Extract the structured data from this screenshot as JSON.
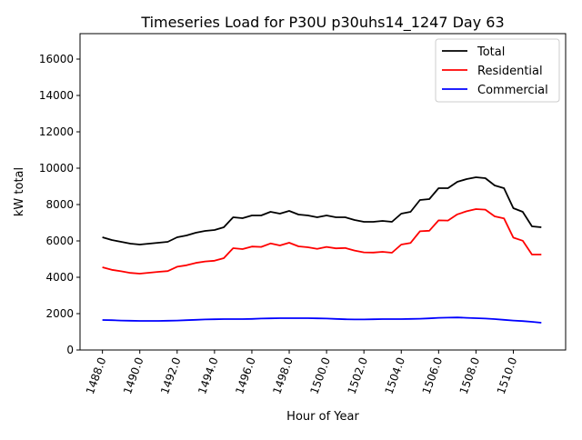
{
  "chart_data": {
    "type": "line",
    "title": "Timeseries Load for P30U p30uhs14_1247  Day 63",
    "xlabel": "Hour of Year",
    "ylabel": "kW total",
    "xlim": [
      1486.8,
      1512.8
    ],
    "ylim": [
      0,
      17400
    ],
    "xticks": [
      1488,
      1490,
      1492,
      1494,
      1496,
      1498,
      1500,
      1502,
      1504,
      1506,
      1508,
      1510
    ],
    "xtick_labels": [
      "1488.0",
      "1490.0",
      "1492.0",
      "1494.0",
      "1496.0",
      "1498.0",
      "1500.0",
      "1502.0",
      "1504.0",
      "1506.0",
      "1508.0",
      "1510.0"
    ],
    "yticks": [
      0,
      2000,
      4000,
      6000,
      8000,
      10000,
      12000,
      14000,
      16000
    ],
    "ytick_labels": [
      "0",
      "2000",
      "4000",
      "6000",
      "8000",
      "10000",
      "12000",
      "14000",
      "16000"
    ],
    "grid": false,
    "legend_position": "top-right",
    "x": [
      1488,
      1488.5,
      1489,
      1489.5,
      1490,
      1490.5,
      1491,
      1491.5,
      1492,
      1492.5,
      1493,
      1493.5,
      1494,
      1494.5,
      1495,
      1495.5,
      1496,
      1496.5,
      1497,
      1497.5,
      1498,
      1498.5,
      1499,
      1499.5,
      1500,
      1500.5,
      1501,
      1501.5,
      1502,
      1502.5,
      1503,
      1503.5,
      1504,
      1504.5,
      1505,
      1505.5,
      1506,
      1506.5,
      1507,
      1507.5,
      1508,
      1508.5,
      1509,
      1509.5,
      1510,
      1510.5,
      1511,
      1511.5
    ],
    "series": [
      {
        "name": "Total",
        "color": "#000000",
        "values": [
          6200,
          6050,
          5950,
          5850,
          5800,
          5850,
          5900,
          5950,
          6200,
          6300,
          6450,
          6550,
          6600,
          6750,
          7300,
          7250,
          7400,
          7400,
          7600,
          7500,
          7650,
          7450,
          7400,
          7300,
          7400,
          7300,
          7300,
          7150,
          7050,
          7050,
          7100,
          7050,
          7500,
          7600,
          8250,
          8300,
          8900,
          8900,
          9250,
          9400,
          9500,
          9450,
          9050,
          8900,
          7800,
          7600,
          6800,
          6750
        ]
      },
      {
        "name": "Residential",
        "color": "#ff0000",
        "values": [
          4550,
          4410,
          4330,
          4240,
          4200,
          4250,
          4300,
          4340,
          4580,
          4660,
          4790,
          4870,
          4910,
          5050,
          5600,
          5550,
          5690,
          5670,
          5860,
          5750,
          5900,
          5700,
          5650,
          5560,
          5670,
          5590,
          5610,
          5470,
          5370,
          5360,
          5400,
          5350,
          5800,
          5890,
          6530,
          6560,
          7130,
          7120,
          7460,
          7630,
          7750,
          7720,
          7350,
          7240,
          6180,
          6010,
          5250,
          5250
        ]
      },
      {
        "name": "Commercial",
        "color": "#0000ff",
        "values": [
          1650,
          1640,
          1620,
          1610,
          1600,
          1600,
          1600,
          1610,
          1620,
          1640,
          1660,
          1680,
          1690,
          1700,
          1700,
          1700,
          1710,
          1730,
          1740,
          1750,
          1750,
          1750,
          1750,
          1740,
          1730,
          1710,
          1690,
          1680,
          1680,
          1690,
          1700,
          1700,
          1700,
          1710,
          1720,
          1740,
          1770,
          1780,
          1790,
          1770,
          1750,
          1730,
          1700,
          1660,
          1620,
          1590,
          1550,
          1500
        ]
      }
    ]
  }
}
